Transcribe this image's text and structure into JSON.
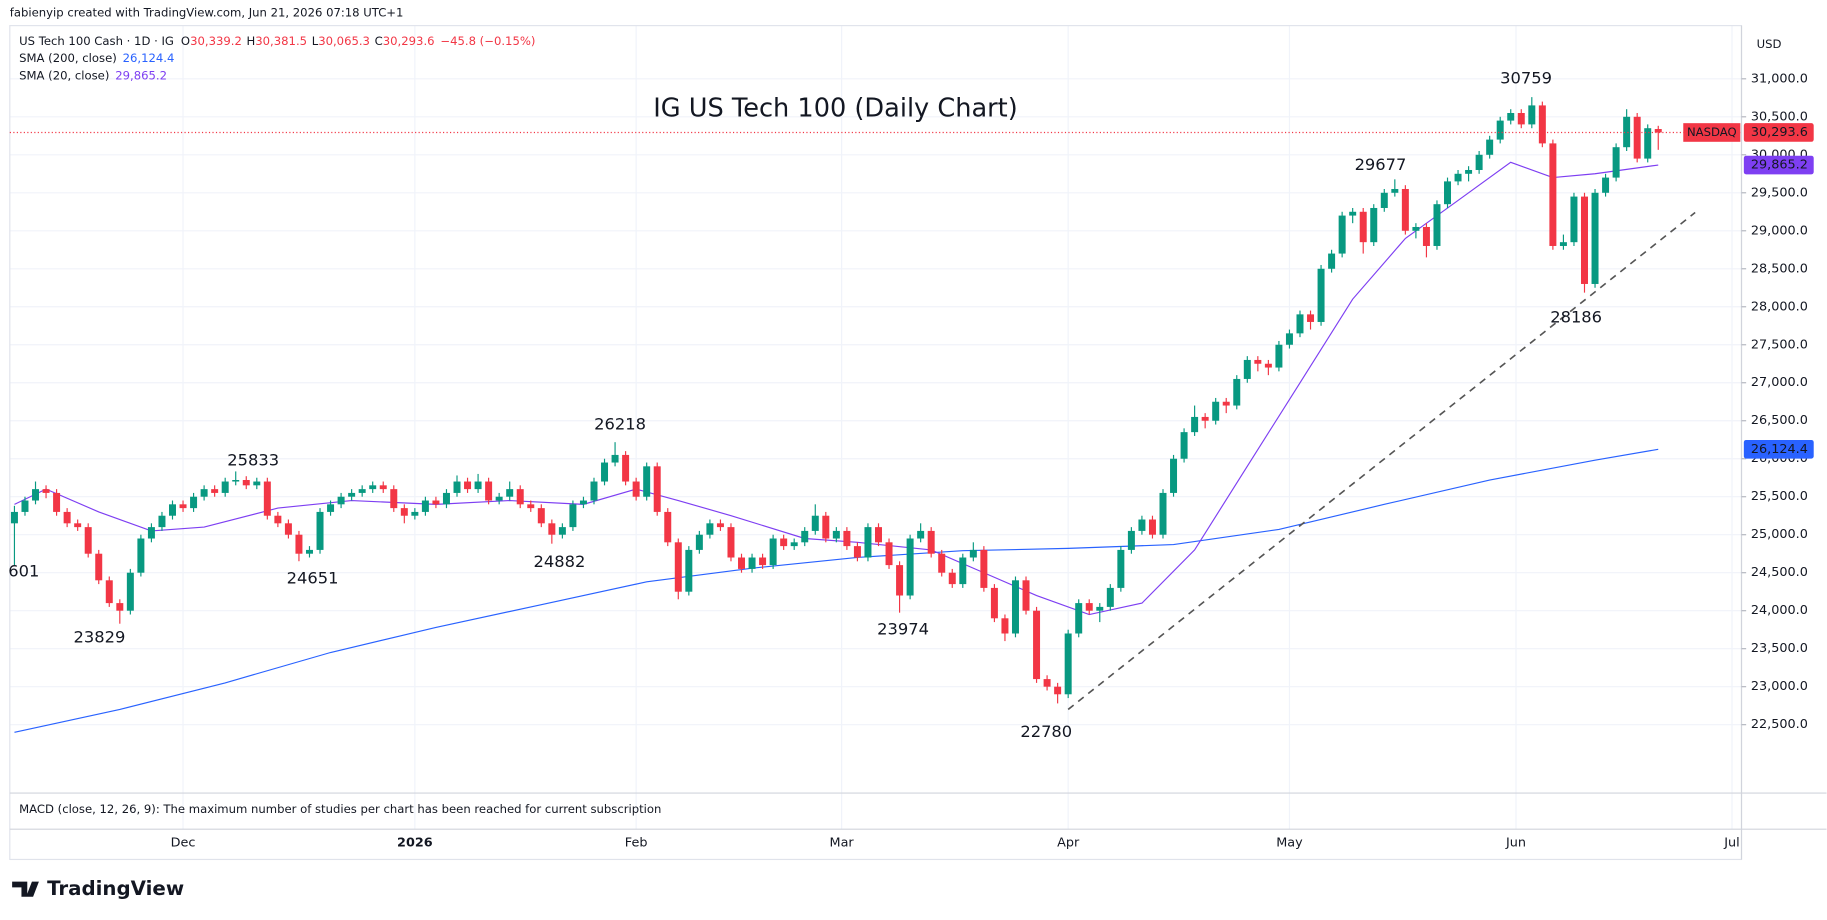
{
  "header": {
    "credit": "fabienyip created with TradingView.com, Jun 21, 2026 07:18 UTC+1"
  },
  "chart_data": {
    "type": "candlestick",
    "title": "IG US Tech 100 (Daily Chart)",
    "symbol": "US Tech 100 Cash · 1D · IG",
    "ohlc_legend": [
      {
        "label": "O",
        "value": "30,339.2"
      },
      {
        "label": "H",
        "value": "30,381.5"
      },
      {
        "label": "L",
        "value": "30,065.3"
      },
      {
        "label": "C",
        "value": "30,293.6"
      }
    ],
    "change": "−45.8 (−0.15%)",
    "currency": "USD",
    "price_label": {
      "name": "NASDAQ",
      "label": "30,293.6"
    },
    "up_color": "#089981",
    "down_color": "#f23645",
    "candles": [
      [
        25150,
        25380,
        24601,
        25300
      ],
      [
        25300,
        25500,
        25250,
        25450
      ],
      [
        25450,
        25700,
        25400,
        25600
      ],
      [
        25600,
        25650,
        25480,
        25550
      ],
      [
        25550,
        25600,
        25250,
        25300
      ],
      [
        25300,
        25350,
        25100,
        25150
      ],
      [
        25150,
        25200,
        25050,
        25100
      ],
      [
        25100,
        25150,
        24700,
        24750
      ],
      [
        24750,
        24800,
        24350,
        24400
      ],
      [
        24400,
        24450,
        24050,
        24100
      ],
      [
        24100,
        24150,
        23829,
        24000
      ],
      [
        24000,
        24550,
        23950,
        24500
      ],
      [
        24500,
        25000,
        24450,
        24950
      ],
      [
        24950,
        25150,
        24900,
        25100
      ],
      [
        25100,
        25300,
        25050,
        25250
      ],
      [
        25250,
        25450,
        25200,
        25400
      ],
      [
        25400,
        25450,
        25300,
        25350
      ],
      [
        25350,
        25550,
        25300,
        25500
      ],
      [
        25500,
        25650,
        25450,
        25600
      ],
      [
        25600,
        25650,
        25500,
        25550
      ],
      [
        25550,
        25750,
        25500,
        25700
      ],
      [
        25700,
        25833,
        25650,
        25720
      ],
      [
        25720,
        25770,
        25600,
        25650
      ],
      [
        25650,
        25750,
        25600,
        25700
      ],
      [
        25700,
        25750,
        25200,
        25250
      ],
      [
        25250,
        25300,
        25100,
        25150
      ],
      [
        25150,
        25200,
        24950,
        25000
      ],
      [
        25000,
        25050,
        24651,
        24750
      ],
      [
        24750,
        24850,
        24700,
        24800
      ],
      [
        24800,
        25350,
        24750,
        25300
      ],
      [
        25300,
        25450,
        25250,
        25400
      ],
      [
        25400,
        25550,
        25350,
        25500
      ],
      [
        25500,
        25600,
        25450,
        25550
      ],
      [
        25550,
        25650,
        25500,
        25600
      ],
      [
        25600,
        25700,
        25550,
        25650
      ],
      [
        25650,
        25700,
        25550,
        25600
      ],
      [
        25600,
        25650,
        25300,
        25350
      ],
      [
        25350,
        25400,
        25150,
        25250
      ],
      [
        25250,
        25350,
        25200,
        25300
      ],
      [
        25300,
        25500,
        25250,
        25450
      ],
      [
        25450,
        25500,
        25350,
        25400
      ],
      [
        25400,
        25600,
        25350,
        25550
      ],
      [
        25550,
        25780,
        25500,
        25700
      ],
      [
        25700,
        25750,
        25550,
        25600
      ],
      [
        25600,
        25800,
        25550,
        25700
      ],
      [
        25700,
        25750,
        25400,
        25450
      ],
      [
        25450,
        25550,
        25400,
        25500
      ],
      [
        25500,
        25700,
        25450,
        25600
      ],
      [
        25600,
        25650,
        25350,
        25400
      ],
      [
        25400,
        25450,
        25300,
        25350
      ],
      [
        25350,
        25400,
        25100,
        25150
      ],
      [
        25150,
        25200,
        24882,
        25000
      ],
      [
        25000,
        25150,
        24950,
        25100
      ],
      [
        25100,
        25450,
        25050,
        25400
      ],
      [
        25400,
        25500,
        25350,
        25450
      ],
      [
        25450,
        25750,
        25400,
        25700
      ],
      [
        25700,
        26000,
        25650,
        25950
      ],
      [
        25950,
        26218,
        25900,
        26050
      ],
      [
        26050,
        26100,
        25650,
        25700
      ],
      [
        25700,
        25750,
        25450,
        25500
      ],
      [
        25500,
        25950,
        25450,
        25900
      ],
      [
        25900,
        25950,
        25250,
        25300
      ],
      [
        25300,
        25350,
        24850,
        24900
      ],
      [
        24900,
        24950,
        24150,
        24250
      ],
      [
        24250,
        24850,
        24200,
        24800
      ],
      [
        24800,
        25050,
        24750,
        25000
      ],
      [
        25000,
        25200,
        24950,
        25150
      ],
      [
        25150,
        25200,
        25050,
        25100
      ],
      [
        25100,
        25150,
        24650,
        24700
      ],
      [
        24700,
        24750,
        24500,
        24550
      ],
      [
        24550,
        24750,
        24500,
        24700
      ],
      [
        24700,
        24750,
        24550,
        24600
      ],
      [
        24600,
        25000,
        24550,
        24950
      ],
      [
        24950,
        25000,
        24800,
        24850
      ],
      [
        24850,
        24950,
        24800,
        24900
      ],
      [
        24900,
        25100,
        24850,
        25050
      ],
      [
        25050,
        25400,
        25000,
        25250
      ],
      [
        25250,
        25300,
        24900,
        24950
      ],
      [
        24950,
        25100,
        24900,
        25050
      ],
      [
        25050,
        25100,
        24800,
        24850
      ],
      [
        24850,
        24900,
        24650,
        24700
      ],
      [
        24700,
        25150,
        24650,
        25100
      ],
      [
        25100,
        25150,
        24850,
        24900
      ],
      [
        24900,
        24950,
        24550,
        24600
      ],
      [
        24600,
        24650,
        23974,
        24200
      ],
      [
        24200,
        25000,
        24150,
        24950
      ],
      [
        24950,
        25150,
        24900,
        25050
      ],
      [
        25050,
        25100,
        24700,
        24750
      ],
      [
        24750,
        24800,
        24450,
        24500
      ],
      [
        24500,
        24550,
        24300,
        24350
      ],
      [
        24350,
        24750,
        24300,
        24700
      ],
      [
        24700,
        24900,
        24650,
        24800
      ],
      [
        24800,
        24850,
        24250,
        24300
      ],
      [
        24300,
        24350,
        23850,
        23900
      ],
      [
        23900,
        23950,
        23600,
        23700
      ],
      [
        23700,
        24450,
        23650,
        24400
      ],
      [
        24400,
        24450,
        23950,
        24000
      ],
      [
        24000,
        24050,
        23050,
        23100
      ],
      [
        23100,
        23150,
        22950,
        23000
      ],
      [
        23000,
        23050,
        22780,
        22900
      ],
      [
        22900,
        23750,
        22850,
        23700
      ],
      [
        23700,
        24150,
        23650,
        24100
      ],
      [
        24100,
        24150,
        23950,
        24000
      ],
      [
        24000,
        24100,
        23850,
        24050
      ],
      [
        24050,
        24350,
        24000,
        24300
      ],
      [
        24300,
        24850,
        24250,
        24800
      ],
      [
        24800,
        25100,
        24750,
        25050
      ],
      [
        25050,
        25250,
        25000,
        25200
      ],
      [
        25200,
        25250,
        24950,
        25000
      ],
      [
        25000,
        25600,
        24950,
        25550
      ],
      [
        25550,
        26050,
        25500,
        26000
      ],
      [
        26000,
        26400,
        25950,
        26350
      ],
      [
        26350,
        26700,
        26300,
        26550
      ],
      [
        26550,
        26600,
        26400,
        26500
      ],
      [
        26500,
        26800,
        26450,
        26750
      ],
      [
        26750,
        26800,
        26600,
        26700
      ],
      [
        26700,
        27100,
        26650,
        27050
      ],
      [
        27050,
        27350,
        27000,
        27300
      ],
      [
        27300,
        27350,
        27150,
        27250
      ],
      [
        27250,
        27300,
        27100,
        27200
      ],
      [
        27200,
        27550,
        27150,
        27500
      ],
      [
        27500,
        27700,
        27450,
        27650
      ],
      [
        27650,
        27950,
        27600,
        27900
      ],
      [
        27900,
        27950,
        27700,
        27800
      ],
      [
        27800,
        28550,
        27750,
        28500
      ],
      [
        28500,
        28750,
        28450,
        28700
      ],
      [
        28700,
        29250,
        28650,
        29200
      ],
      [
        29200,
        29300,
        29100,
        29250
      ],
      [
        29250,
        29300,
        28700,
        28850
      ],
      [
        28850,
        29350,
        28800,
        29300
      ],
      [
        29300,
        29550,
        29250,
        29500
      ],
      [
        29500,
        29677,
        29450,
        29550
      ],
      [
        29550,
        29600,
        28950,
        29000
      ],
      [
        29000,
        29100,
        28900,
        29050
      ],
      [
        29050,
        29100,
        28650,
        28800
      ],
      [
        28800,
        29400,
        28750,
        29350
      ],
      [
        29350,
        29700,
        29300,
        29650
      ],
      [
        29650,
        29800,
        29600,
        29750
      ],
      [
        29750,
        29850,
        29650,
        29800
      ],
      [
        29800,
        30050,
        29750,
        30000
      ],
      [
        30000,
        30250,
        29950,
        30200
      ],
      [
        30200,
        30500,
        30150,
        30450
      ],
      [
        30450,
        30600,
        30400,
        30550
      ],
      [
        30550,
        30600,
        30350,
        30400
      ],
      [
        30400,
        30759,
        30350,
        30650
      ],
      [
        30650,
        30700,
        30100,
        30150
      ],
      [
        30150,
        30200,
        28750,
        28800
      ],
      [
        28800,
        28950,
        28750,
        28850
      ],
      [
        28850,
        29500,
        28800,
        29450
      ],
      [
        29450,
        29500,
        28186,
        28300
      ],
      [
        28300,
        29550,
        28250,
        29500
      ],
      [
        29500,
        29750,
        29450,
        29700
      ],
      [
        29700,
        30150,
        29650,
        30100
      ],
      [
        30100,
        30600,
        30050,
        30500
      ],
      [
        30500,
        30550,
        29900,
        29950
      ],
      [
        29950,
        30400,
        29900,
        30350
      ],
      [
        30339.2,
        30381.5,
        30065.3,
        30293.6
      ]
    ],
    "series": [
      {
        "name": "SMA (200, close)",
        "color": "#2962ff",
        "last_label": "26,124.4",
        "x": [
          0,
          10,
          20,
          30,
          40,
          50,
          60,
          70,
          80,
          90,
          100,
          110,
          120,
          130,
          140,
          150,
          156
        ],
        "values": [
          22400,
          22700,
          23050,
          23450,
          23780,
          24080,
          24380,
          24560,
          24700,
          24790,
          24820,
          24870,
          25070,
          25400,
          25720,
          25980,
          26124.4
        ]
      },
      {
        "name": "SMA (20, close)",
        "color": "#7e3ff2",
        "last_label": "29,865.2",
        "x": [
          0,
          3,
          8,
          13,
          18,
          25,
          32,
          40,
          47,
          54,
          59,
          63,
          68,
          75,
          80,
          87,
          92,
          97,
          102,
          107,
          112,
          117,
          122,
          127,
          132,
          137,
          142,
          146,
          150,
          156
        ],
        "values": [
          25400,
          25600,
          25300,
          25050,
          25100,
          25350,
          25450,
          25400,
          25450,
          25400,
          25600,
          25450,
          25250,
          24950,
          24900,
          24800,
          24500,
          24200,
          23950,
          24100,
          24800,
          25900,
          27000,
          28100,
          28900,
          29400,
          29900,
          29700,
          29750,
          29865.2
        ]
      }
    ],
    "trendline": {
      "x": [
        100,
        159.5
      ],
      "values": [
        22700,
        29240
      ]
    },
    "annotations": [
      "30759",
      "29677",
      "28186",
      "26218",
      "25833",
      "24651",
      "24882",
      "23829",
      "23974",
      "22780",
      "601"
    ],
    "xlim": [
      -0.44,
      163.9
    ],
    "xticks": [
      {
        "value": 16,
        "label": "Dec"
      },
      {
        "value": 38,
        "label": "2026"
      },
      {
        "value": 59,
        "label": "Feb"
      },
      {
        "value": 78.5,
        "label": "Mar"
      },
      {
        "value": 100,
        "label": "Apr"
      },
      {
        "value": 121,
        "label": "May"
      },
      {
        "value": 142.5,
        "label": "Jun"
      },
      {
        "value": 163,
        "label": "Jul"
      }
    ],
    "ylim": [
      21600,
      31700
    ],
    "yticks": [
      {
        "value": 22500,
        "label": "22,500.0"
      },
      {
        "value": 23000,
        "label": "23,000.0"
      },
      {
        "value": 23500,
        "label": "23,500.0"
      },
      {
        "value": 24000,
        "label": "24,000.0"
      },
      {
        "value": 24500,
        "label": "24,500.0"
      },
      {
        "value": 25000,
        "label": "25,000.0"
      },
      {
        "value": 25500,
        "label": "25,500.0"
      },
      {
        "value": 26000,
        "label": "26,000.0"
      },
      {
        "value": 26500,
        "label": "26,500.0"
      },
      {
        "value": 27000,
        "label": "27,000.0"
      },
      {
        "value": 27500,
        "label": "27,500.0"
      },
      {
        "value": 28000,
        "label": "28,000.0"
      },
      {
        "value": 28500,
        "label": "28,500.0"
      },
      {
        "value": 29000,
        "label": "29,000.0"
      },
      {
        "value": 29500,
        "label": "29,500.0"
      },
      {
        "value": 30000,
        "label": "30,000.0"
      },
      {
        "value": 30500,
        "label": "30,500.0"
      },
      {
        "value": 31000,
        "label": "31,000.0"
      }
    ],
    "grid": true,
    "note": "MACD (close, 12, 26, 9): The maximum number of studies per chart has been reached for current subscription"
  },
  "footer": {
    "brand": "TradingView"
  }
}
